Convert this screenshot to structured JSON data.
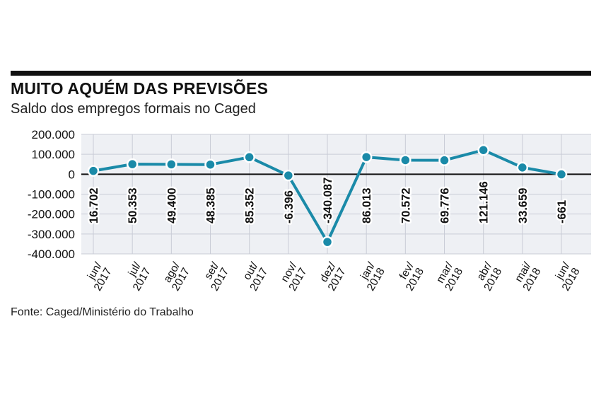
{
  "header": {
    "title": "MUITO AQUÉM DAS PREVISÕES",
    "subtitle": "Saldo dos empregos formais no Caged"
  },
  "footer": {
    "source": "Fonte: Caged/Ministério do Trabalho"
  },
  "colors": {
    "line": "#1a8aa8",
    "grid": "#c9ccd6",
    "plot_bg": "#eef0f4",
    "zero_line": "#111111",
    "marker_stroke": "#ffffff"
  },
  "chart_data": {
    "type": "line",
    "title": "MUITO AQUÉM DAS PREVISÕES",
    "subtitle": "Saldo dos empregos formais no Caged",
    "categories": [
      "jun/2017",
      "jul/2017",
      "ago/2017",
      "set/2017",
      "out/2017",
      "nov/2017",
      "dez/2017",
      "jan/2018",
      "fev/2018",
      "mar/2018",
      "abr/2018",
      "mai/2018",
      "jun/2018"
    ],
    "category_lines": [
      [
        "jun/",
        "2017"
      ],
      [
        "jul/",
        "2017"
      ],
      [
        "ago/",
        "2017"
      ],
      [
        "set/",
        "2017"
      ],
      [
        "out/",
        "2017"
      ],
      [
        "nov/",
        "2017"
      ],
      [
        "dez/",
        "2017"
      ],
      [
        "jan/",
        "2018"
      ],
      [
        "fev/",
        "2018"
      ],
      [
        "mar/",
        "2018"
      ],
      [
        "abr/",
        "2018"
      ],
      [
        "mai/",
        "2018"
      ],
      [
        "jun/",
        "2018"
      ]
    ],
    "values": [
      16702,
      50353,
      49400,
      48385,
      85352,
      -6396,
      -340087,
      86013,
      70572,
      69776,
      121146,
      33659,
      -661
    ],
    "data_labels": [
      "16.702",
      "50.353",
      "49.400",
      "48.385",
      "85.352",
      "-6.396",
      "-340.087",
      "86.013",
      "70.572",
      "69.776",
      "121.146",
      "33.659",
      "-661"
    ],
    "y_ticks": [
      200000,
      100000,
      0,
      -100000,
      -200000,
      -300000,
      -400000
    ],
    "y_tick_labels": [
      "200.000",
      "100.000",
      "0",
      "-100.000",
      "-200.000",
      "-300.000",
      "-400.000"
    ],
    "ylim": [
      -400000,
      200000
    ],
    "grid": true,
    "xlabel": "",
    "ylabel": ""
  }
}
